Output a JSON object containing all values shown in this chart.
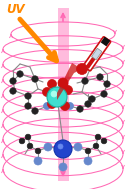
{
  "bg_color": "#ffffff",
  "uv_text": "UV",
  "uv_text_color": "#ff8800",
  "pink_color": "#ff69b4",
  "orange_color": "#ff8800",
  "bond_color": "#888888",
  "teal_atom_color": "#40e0d0",
  "red_atom_color": "#cc1111",
  "blue_atom_color": "#2244cc",
  "blue_small_color": "#6688cc",
  "dark_color": "#222222",
  "therm_red": "#cc1111",
  "therm_white": "#ffffff",
  "therm_dark": "#111111"
}
